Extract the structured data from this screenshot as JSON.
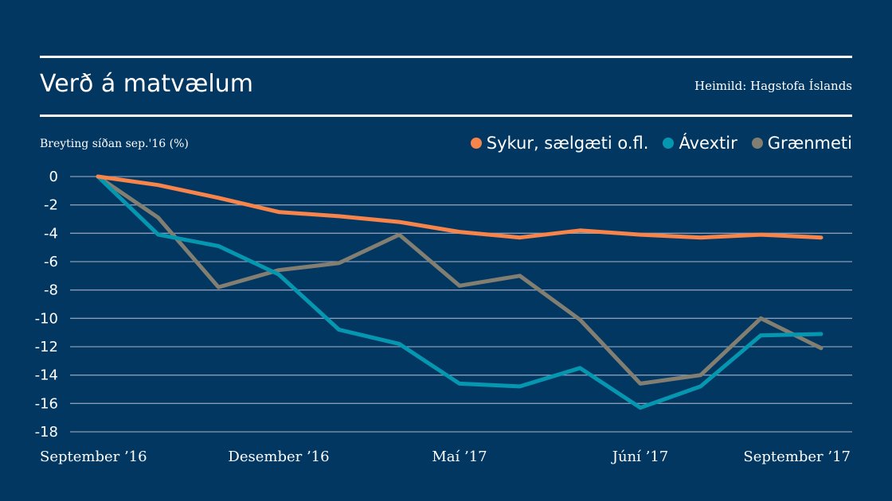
{
  "header": {
    "title": "Verð á matvælum",
    "source": "Heimild: Hagstofa Íslands",
    "y_axis_label": "Breyting síðan sep.'16 (%)"
  },
  "chart_data": {
    "type": "line",
    "title": "Verð á matvælum",
    "xlabel": "",
    "ylabel": "Breyting síðan sep.'16 (%)",
    "ylim": [
      -18,
      0
    ],
    "yticks": [
      0,
      -2,
      -4,
      -6,
      -8,
      -10,
      -12,
      -14,
      -16,
      -18
    ],
    "x": [
      0,
      1,
      2,
      3,
      4,
      5,
      6,
      7,
      8,
      9,
      10,
      11,
      12
    ],
    "xtick_labels": [
      {
        "index": 0,
        "label": "September ’16"
      },
      {
        "index": 3,
        "label": "Desember ’16"
      },
      {
        "index": 6,
        "label": "Maí ’17"
      },
      {
        "index": 9,
        "label": "Júní ’17"
      },
      {
        "index": 12,
        "label": "September ’17"
      }
    ],
    "grid": true,
    "legend_position": "top-right",
    "series": [
      {
        "name": "Sykur, sælgæti o.fl.",
        "color": "#F7844A",
        "values": [
          0,
          -0.6,
          -1.5,
          -2.5,
          -2.8,
          -3.2,
          -3.9,
          -4.3,
          -3.8,
          -4.1,
          -4.3,
          -4.1,
          -4.3
        ]
      },
      {
        "name": "Ávextir",
        "color": "#0697B0",
        "values": [
          0,
          -4.1,
          -4.9,
          -6.9,
          -10.8,
          -11.8,
          -14.6,
          -14.8,
          -13.5,
          -16.3,
          -14.8,
          -11.2,
          -11.1
        ]
      },
      {
        "name": "Grænmeti",
        "color": "#827F72",
        "values": [
          0,
          -2.9,
          -7.8,
          -6.6,
          -6.1,
          -4.1,
          -7.7,
          -7.0,
          -10.1,
          -14.6,
          -14.0,
          -10.0,
          -12.1
        ]
      }
    ]
  },
  "colors": {
    "background": "#023761",
    "gridline": "#8A9DB5",
    "text": "#FFFFFF"
  }
}
